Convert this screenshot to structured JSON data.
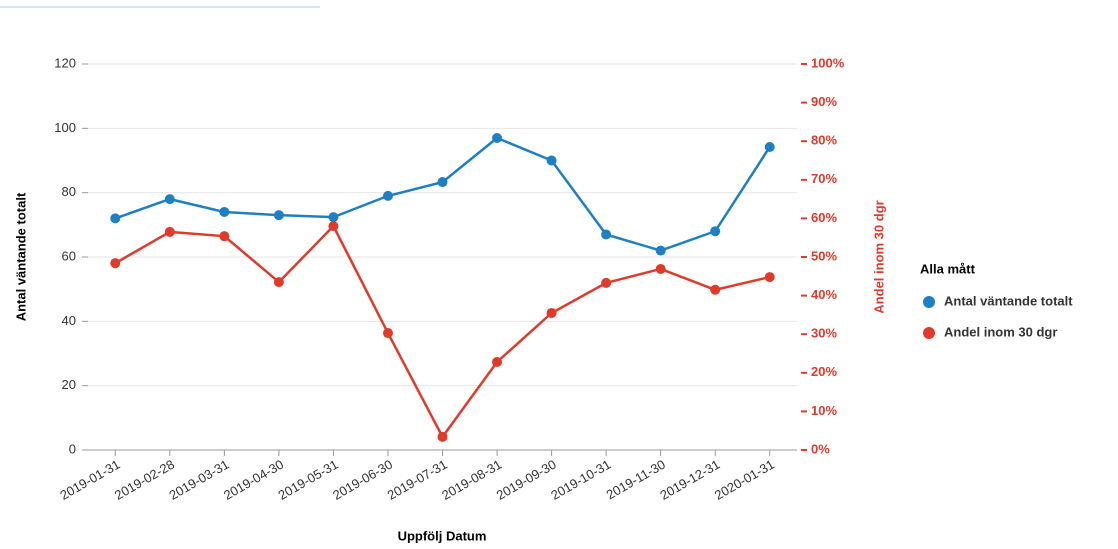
{
  "chart_data": {
    "type": "line",
    "categories": [
      "2019-01-31",
      "2019-02-28",
      "2019-03-31",
      "2019-04-30",
      "2019-05-31",
      "2019-06-30",
      "2019-07-31",
      "2019-08-31",
      "2019-09-30",
      "2019-10-31",
      "2019-11-30",
      "2019-12-31",
      "2020-01-31"
    ],
    "series": [
      {
        "name": "Antal väntande totalt",
        "color": "#1f7fc4",
        "values": [
          72,
          78,
          74,
          73,
          72.4,
          79,
          83.3,
          97,
          90,
          67,
          62,
          68,
          94.2
        ]
      },
      {
        "name": "Andel inom 30 dgr",
        "color": "#e03a2a",
        "axis": "y2",
        "values": [
          48.4,
          56.5,
          55.4,
          43.5,
          58,
          30.3,
          3.4,
          22.8,
          35.5,
          43.3,
          46.9,
          41.5,
          44.8
        ]
      }
    ],
    "xlabel": "Uppfölj Datum",
    "ylabel": "Antal väntande totalt",
    "y2label": "Andel inom 30 dgr",
    "legend_title": "Alla mått",
    "ylim": [
      0,
      120
    ],
    "yticks": [
      0,
      20,
      40,
      60,
      80,
      100,
      120
    ],
    "y2lim": [
      0,
      100
    ],
    "y2ticks": [
      {
        "value": 0,
        "label": "0%"
      },
      {
        "value": 10,
        "label": "10%"
      },
      {
        "value": 20,
        "label": "20%"
      },
      {
        "value": 30,
        "label": "30%"
      },
      {
        "value": 40,
        "label": "40%"
      },
      {
        "value": 50,
        "label": "50%"
      },
      {
        "value": 60,
        "label": "60%"
      },
      {
        "value": 70,
        "label": "70%"
      },
      {
        "value": 80,
        "label": "80%"
      },
      {
        "value": 90,
        "label": "90%"
      },
      {
        "value": 100,
        "label": "100%"
      }
    ],
    "grid": true,
    "legend": "right"
  }
}
